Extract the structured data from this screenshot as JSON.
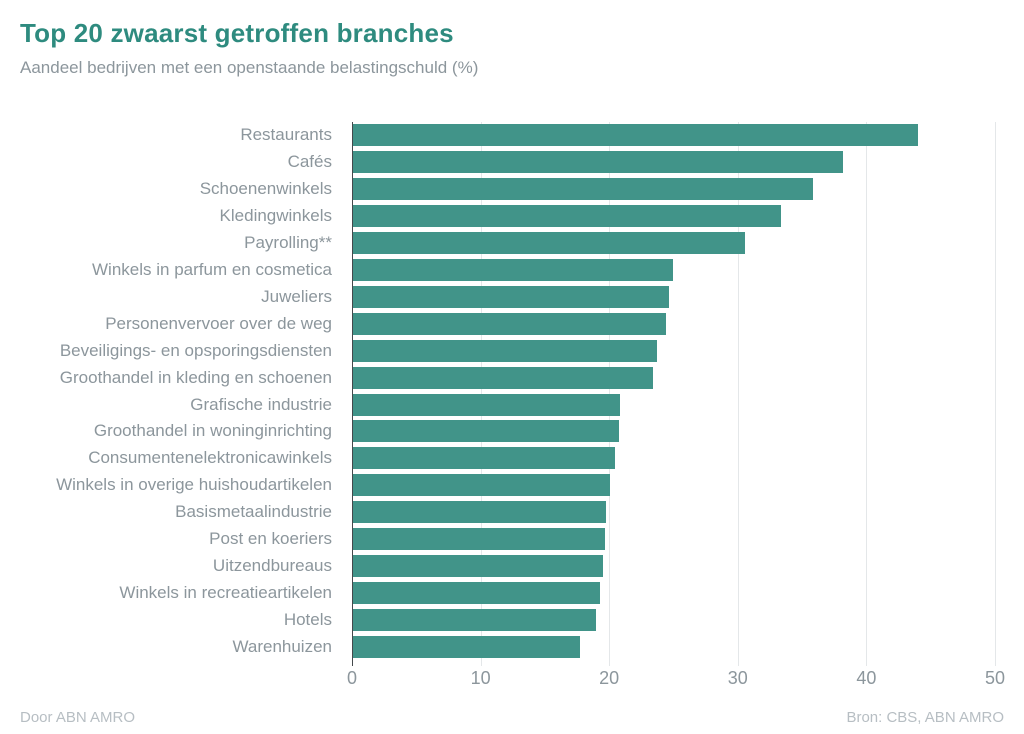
{
  "header": {
    "title": "Top 20 zwaarst getroffen branches",
    "subtitle": "Aandeel bedrijven met een openstaande belastingschuld (%)"
  },
  "chart_data": {
    "type": "bar",
    "orientation": "horizontal",
    "title": "Top 20 zwaarst getroffen branches",
    "subtitle": "Aandeel bedrijven met een openstaande belastingschuld (%)",
    "categories": [
      "Restaurants",
      "Cafés",
      "Schoenenwinkels",
      "Kledingwinkels",
      "Payrolling**",
      "Winkels in parfum en cosmetica",
      "Juweliers",
      "Personenvervoer over de weg",
      "Beveiligings- en opsporingsdiensten",
      "Groothandel in kleding en schoenen",
      "Grafische industrie",
      "Groothandel in woninginrichting",
      "Consumentenelektronicawinkels",
      "Winkels in overige huishoudartikelen",
      "Basismetaalindustrie",
      "Post en koeriers",
      "Uitzendbureaus",
      "Winkels in recreatieartikelen",
      "Hotels",
      "Warenhuizen"
    ],
    "values": [
      44.0,
      38.2,
      35.8,
      33.3,
      30.5,
      24.9,
      24.6,
      24.4,
      23.7,
      23.4,
      20.8,
      20.7,
      20.4,
      20.0,
      19.7,
      19.6,
      19.5,
      19.2,
      18.9,
      17.7
    ],
    "xlabel": "",
    "ylabel": "",
    "xlim": [
      0,
      50
    ],
    "xticks": [
      0,
      10,
      20,
      30,
      40,
      50
    ],
    "grid": true,
    "legend": "none"
  },
  "footer": {
    "left": "Door ABN AMRO",
    "right": "Bron: CBS, ABN AMRO"
  },
  "colors": {
    "bar": "#419489",
    "title": "#2e8b7f",
    "text_muted": "#8c969c",
    "footer_text": "#b7bec3",
    "gridline": "#e4e7e9",
    "axis_line": "#44494c"
  }
}
